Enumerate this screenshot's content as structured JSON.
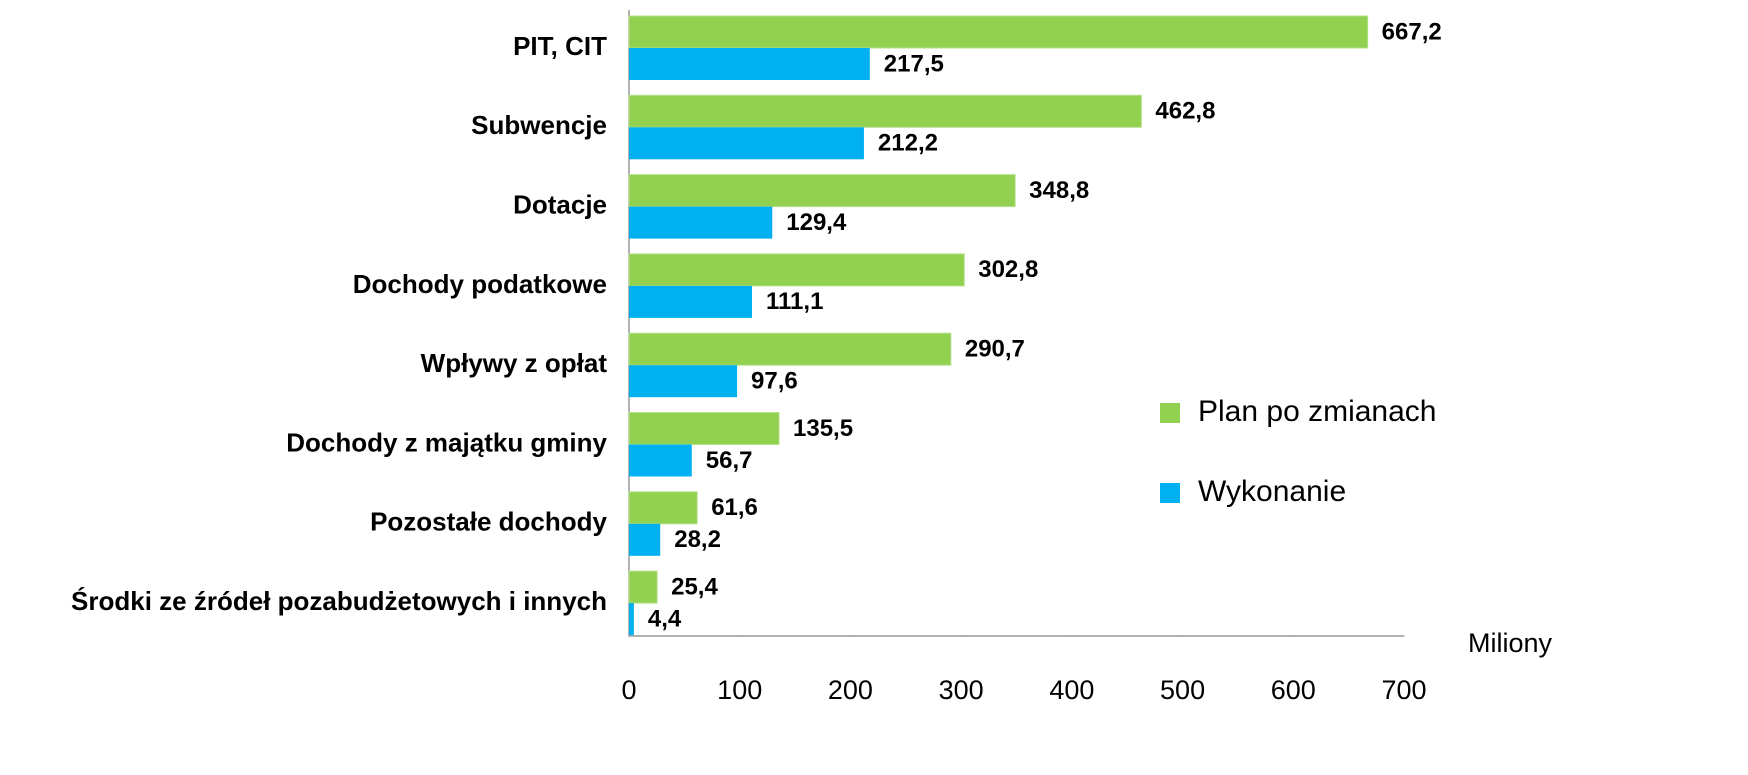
{
  "chart_data": {
    "type": "barh",
    "categories": [
      "PIT, CIT",
      "Subwencje",
      "Dotacje",
      "Dochody podatkowe",
      "Wpływy z opłat",
      "Dochody z majątku gminy",
      "Pozostałe dochody",
      "Środki ze źródeł pozabudżetowych i innych"
    ],
    "series": [
      {
        "name": "Plan po zmianach",
        "color": "#92d050",
        "values": [
          667.2,
          462.8,
          348.8,
          302.8,
          290.7,
          135.5,
          61.6,
          25.4
        ],
        "value_labels": [
          "667,2",
          "462,8",
          "348,8",
          "302,8",
          "290,7",
          "135,5",
          "61,6",
          "25,4"
        ]
      },
      {
        "name": "Wykonanie",
        "color": "#00b0f0",
        "values": [
          217.5,
          212.2,
          129.4,
          111.1,
          97.6,
          56.7,
          28.2,
          4.4
        ],
        "value_labels": [
          "217,5",
          "212,2",
          "129,4",
          "111,1",
          "97,6",
          "56,7",
          "28,2",
          "4,4"
        ]
      }
    ],
    "xlabel": "Miliony",
    "xlim": [
      0,
      700
    ],
    "xticks": [
      0,
      100,
      200,
      300,
      400,
      500,
      600,
      700
    ],
    "legend": "right"
  }
}
